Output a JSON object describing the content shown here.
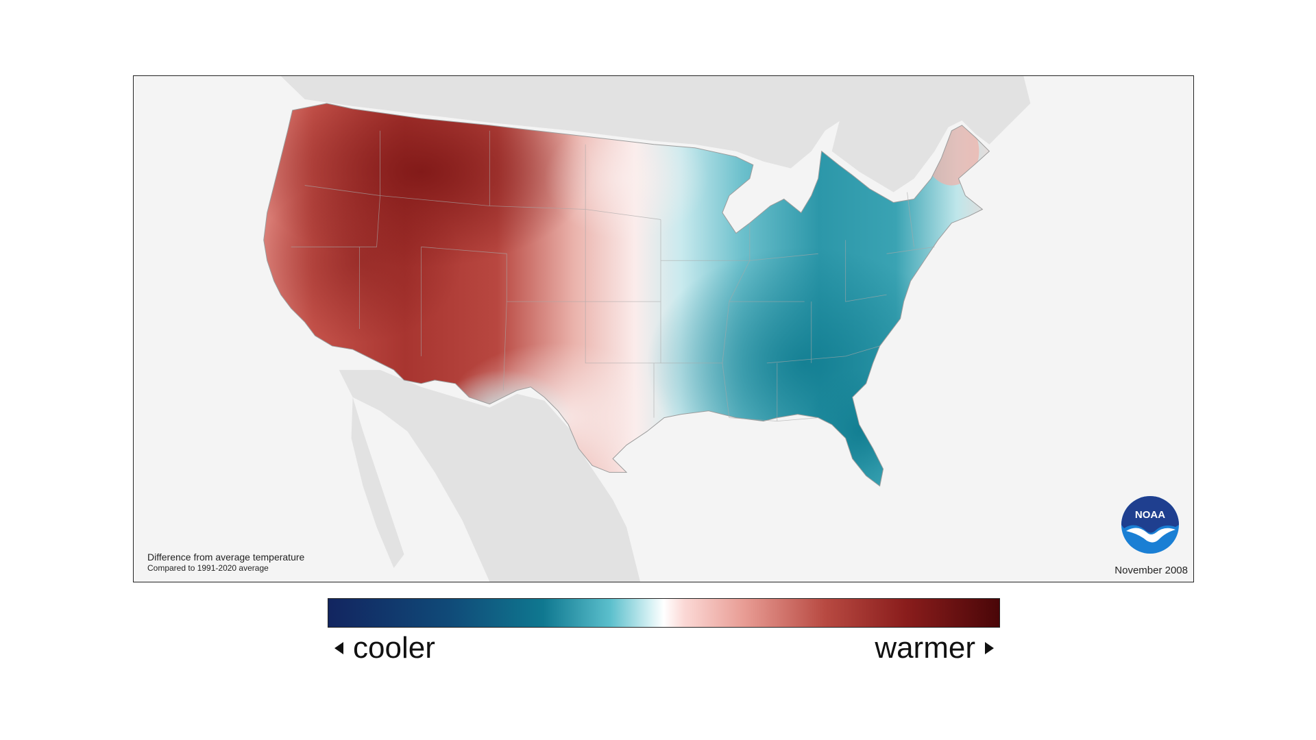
{
  "caption": {
    "title": "Difference from average temperature",
    "subtitle": "Compared to 1991-2020 average"
  },
  "date": "November 2008",
  "legend": {
    "cooler": "cooler",
    "warmer": "warmer"
  },
  "logo": {
    "text": "NOAA",
    "colors": {
      "top": "#1f3f8f",
      "bottom": "#1a7fd4",
      "bird": "#ffffff"
    }
  },
  "colors": {
    "warm_strong": "#9c2a26",
    "warm_mid": "#d2665e",
    "warm_light": "#f4c3bd",
    "neutral": "#fbf6f6",
    "cool_light": "#c6ebee",
    "cool_mid": "#5bb5c2",
    "cool_strong": "#1b8599",
    "land_outside": "#e2e2e2",
    "water": "#f4f4f4"
  },
  "icons": [
    "noaa-logo-icon",
    "arrow-left-icon",
    "arrow-right-icon"
  ]
}
